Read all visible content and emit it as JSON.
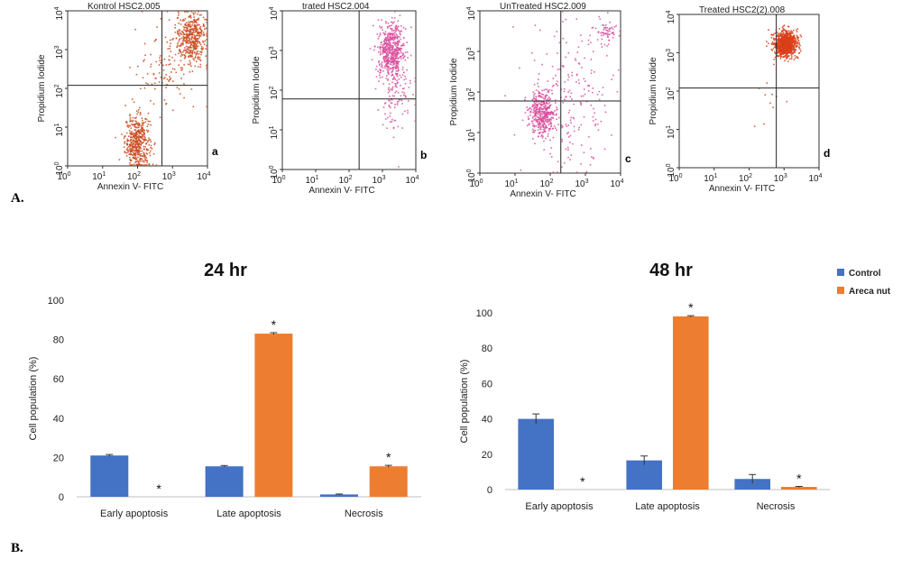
{
  "figure": {
    "panel_a_label": "A.",
    "panel_b_label": "B."
  },
  "chart_data": [
    {
      "type": "scatter",
      "id": "flow-a",
      "title": "Kontrol HSC2.005",
      "panel_letter": "a",
      "xlabel": "Annexin V- FITC",
      "ylabel": "Propidium Iodide",
      "x_scale": "log",
      "y_scale": "log",
      "xlim": [
        1,
        10000
      ],
      "ylim": [
        1,
        10000
      ],
      "gate": {
        "x": 500,
        "y": 120
      },
      "color": "#c94a1e",
      "clusters": [
        {
          "cx": 100,
          "cy": 4,
          "sx": 0.18,
          "sy": 0.35,
          "n": 450
        },
        {
          "cx": 3500,
          "cy": 2000,
          "sx": 0.22,
          "sy": 0.35,
          "n": 420
        },
        {
          "cx": 700,
          "cy": 300,
          "sx": 0.45,
          "sy": 0.55,
          "n": 110
        }
      ]
    },
    {
      "type": "scatter",
      "id": "flow-b",
      "title": "trated HSC2.004",
      "panel_letter": "b",
      "xlabel": "Annexin V- FITC",
      "ylabel": "Propidium Iodide",
      "x_scale": "log",
      "y_scale": "log",
      "xlim": [
        1,
        10000
      ],
      "ylim": [
        1,
        10000
      ],
      "gate": {
        "x": 200,
        "y": 60
      },
      "color": "#d94f9c",
      "clusters": [
        {
          "cx": 1800,
          "cy": 1000,
          "sx": 0.2,
          "sy": 0.35,
          "n": 520
        },
        {
          "cx": 2500,
          "cy": 80,
          "sx": 0.25,
          "sy": 0.5,
          "n": 120
        }
      ]
    },
    {
      "type": "scatter",
      "id": "flow-c",
      "title": "UnTreated HSC2.009",
      "panel_letter": "c",
      "xlabel": "Annexin V- FITC",
      "ylabel": "Propidium Iodide",
      "x_scale": "log",
      "y_scale": "log",
      "xlim": [
        1,
        10000
      ],
      "ylim": [
        1,
        10000
      ],
      "gate": {
        "x": 200,
        "y": 60
      },
      "color": "#d94f9c",
      "clusters": [
        {
          "cx": 60,
          "cy": 30,
          "sx": 0.18,
          "sy": 0.28,
          "n": 380
        },
        {
          "cx": 4000,
          "cy": 3000,
          "sx": 0.15,
          "sy": 0.15,
          "n": 60
        },
        {
          "cx": 300,
          "cy": 60,
          "sx": 0.6,
          "sy": 0.9,
          "n": 220
        }
      ]
    },
    {
      "type": "scatter",
      "id": "flow-d",
      "title": "Treated HSC2(2).008",
      "panel_letter": "d",
      "xlabel": "Annexin V- FITC",
      "ylabel": "Propidium Iodide",
      "x_scale": "log",
      "y_scale": "log",
      "xlim": [
        1,
        10000
      ],
      "ylim": [
        1,
        10000
      ],
      "gate": {
        "x": 600,
        "y": 120
      },
      "color": "#d9401a",
      "clusters": [
        {
          "cx": 1100,
          "cy": 1700,
          "sx": 0.17,
          "sy": 0.17,
          "n": 900
        },
        {
          "cx": 400,
          "cy": 60,
          "sx": 0.3,
          "sy": 0.4,
          "n": 10
        }
      ]
    },
    {
      "type": "bar",
      "id": "bar-24",
      "title": "24 hr",
      "xlabel": "",
      "ylabel": "Cell population (%)",
      "ylim": [
        0,
        100
      ],
      "yticks": [
        0,
        20,
        40,
        60,
        80,
        100
      ],
      "categories": [
        "Early apoptosis",
        "Late apoptosis",
        "Necrosis"
      ],
      "series": [
        {
          "name": "Control",
          "color": "#4472c4",
          "values": [
            21,
            15.5,
            1.2
          ],
          "errors": [
            0.5,
            0.4,
            0.2
          ],
          "stars": [
            "",
            "",
            ""
          ]
        },
        {
          "name": "Areca nut",
          "color": "#ed7d31",
          "values": [
            0,
            83,
            15.5
          ],
          "errors": [
            0,
            0.5,
            0.5
          ],
          "stars": [
            "*",
            "*",
            "*"
          ]
        }
      ]
    },
    {
      "type": "bar",
      "id": "bar-48",
      "title": "48 hr",
      "xlabel": "",
      "ylabel": "Cell population (%)",
      "ylim": [
        0,
        100
      ],
      "yticks": [
        0,
        20,
        40,
        60,
        80,
        100
      ],
      "categories": [
        "Early apoptosis",
        "Late apoptosis",
        "Necrosis"
      ],
      "series": [
        {
          "name": "Control",
          "color": "#4472c4",
          "values": [
            40,
            16.5,
            6
          ],
          "errors": [
            2.8,
            2.5,
            2.5
          ],
          "stars": [
            "",
            "",
            ""
          ]
        },
        {
          "name": "Areca nut",
          "color": "#ed7d31",
          "values": [
            0,
            98,
            1.5
          ],
          "errors": [
            0,
            0.4,
            0.3
          ],
          "stars": [
            "*",
            "*",
            "*"
          ]
        }
      ]
    }
  ],
  "legend": {
    "items": [
      {
        "label": "Control",
        "color": "#4472c4"
      },
      {
        "label": "Areca nut",
        "color": "#ed7d31"
      }
    ]
  }
}
